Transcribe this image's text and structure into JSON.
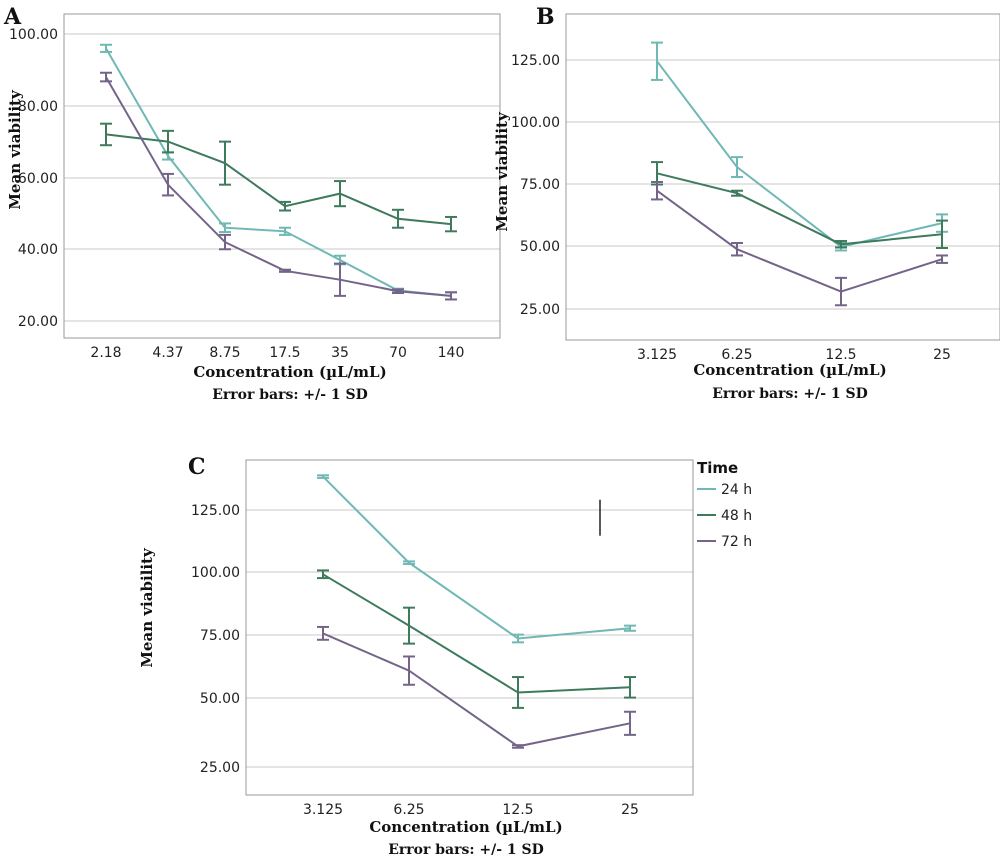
{
  "colors": {
    "24 h": "#6fb8b4",
    "48 h": "#3e7a5c",
    "72 h": "#75648a"
  },
  "legend": {
    "title": "Time",
    "entries": [
      "24 h",
      "48 h",
      "72 h"
    ]
  },
  "chart_data": [
    {
      "panel": "A",
      "type": "line",
      "xlabel": "Concentration (µL/mL)",
      "note": "Error bars: +/- 1 SD",
      "ylabel": "Mean viability",
      "categories": [
        "2.18",
        "4.37",
        "8.75",
        "17.5",
        "35",
        "70",
        "140"
      ],
      "yticks": [
        "20.00",
        "40.00",
        "60.00",
        "80.00",
        "100.00"
      ],
      "ylim": [
        15,
        102
      ],
      "grid": true,
      "series": [
        {
          "name": "24 h",
          "values": [
            96,
            66,
            46,
            45,
            37,
            28.5,
            27
          ],
          "sd": [
            1,
            1,
            1.2,
            1,
            1.2,
            0.5,
            1
          ]
        },
        {
          "name": "48 h",
          "values": [
            72,
            70,
            64,
            52,
            55.5,
            48.5,
            47
          ],
          "sd": [
            3,
            3,
            6,
            1.2,
            3.5,
            2.5,
            2
          ]
        },
        {
          "name": "72 h",
          "values": [
            88,
            58,
            42,
            34,
            31.5,
            28.3,
            27
          ],
          "sd": [
            1.2,
            3,
            2,
            0.3,
            4.5,
            0.5,
            1
          ]
        }
      ]
    },
    {
      "panel": "B",
      "type": "line",
      "xlabel": "Concentration (µL/mL)",
      "note": "Error bars: +/- 1 SD",
      "ylabel": "Mean viability",
      "categories": [
        "3.125",
        "6.25",
        "12.5",
        "25"
      ],
      "yticks": [
        "25.00",
        "50.00",
        "75.00",
        "100.00",
        "125.00"
      ],
      "ylim": [
        12,
        140
      ],
      "grid": true,
      "series": [
        {
          "name": "24 h",
          "values": [
            124.5,
            82,
            50,
            59.5
          ],
          "sd": [
            7.5,
            4,
            1.5,
            3.5
          ]
        },
        {
          "name": "48 h",
          "values": [
            79.5,
            71.5,
            51,
            55
          ],
          "sd": [
            4.5,
            1,
            1.3,
            5.5
          ]
        },
        {
          "name": "72 h",
          "values": [
            72.5,
            49,
            32,
            45
          ],
          "sd": [
            3.5,
            2.5,
            5.5,
            1.5
          ]
        }
      ]
    },
    {
      "panel": "C",
      "type": "line",
      "xlabel": "Concentration (µL/mL)",
      "note": "Error bars: +/- 1 SD",
      "ylabel": "Mean viability",
      "categories": [
        "3.125",
        "6.25",
        "12.5",
        "25"
      ],
      "yticks": [
        "25.00",
        "50.00",
        "75.00",
        "100.00",
        "125.00"
      ],
      "ylim": [
        15,
        143
      ],
      "grid": true,
      "legend_position": "top-right",
      "series": [
        {
          "name": "24 h",
          "values": [
            138,
            104.5,
            75,
            79
          ],
          "sd": [
            0.5,
            0.5,
            1.5,
            1
          ]
        },
        {
          "name": "48 h",
          "values": [
            100,
            80,
            54,
            56
          ],
          "sd": [
            1.5,
            7,
            6,
            4
          ]
        },
        {
          "name": "72 h",
          "values": [
            77,
            62.5,
            33,
            42
          ],
          "sd": [
            2.5,
            5.5,
            0.5,
            4.5
          ]
        }
      ],
      "extra_marks": [
        {
          "category": "25",
          "value": 122,
          "sd": 7
        }
      ]
    }
  ]
}
